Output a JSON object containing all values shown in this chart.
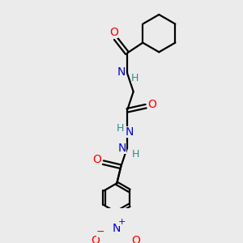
{
  "bg_color": "#ebebeb",
  "atom_colors": {
    "O": "#ff0000",
    "N": "#0000cc",
    "H": "#2e8b8b",
    "C": "#000000"
  },
  "bond_color": "#000000",
  "bond_width": 1.6
}
